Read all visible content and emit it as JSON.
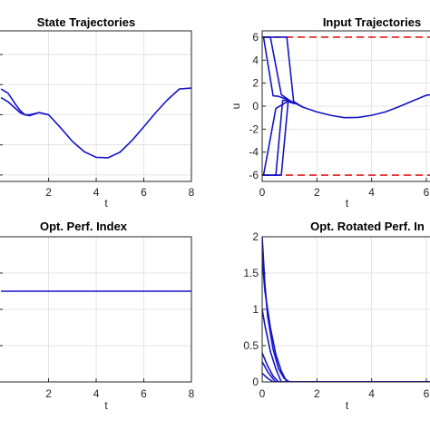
{
  "chart_data": [
    {
      "type": "line",
      "title": "State Trajectories",
      "xlabel": "t",
      "ylabel": "",
      "xlim": [
        0,
        8
      ],
      "xticks": [
        "2",
        "4",
        "6",
        "8"
      ],
      "grid": true,
      "series": [
        {
          "x": [
            0.0,
            0.3,
            0.6,
            0.8,
            1.0,
            1.2,
            1.6,
            2.0,
            2.5,
            3.0,
            3.5,
            4.0,
            4.5,
            5.0,
            5.5,
            6.0,
            6.5,
            7.0,
            7.5,
            8.0
          ],
          "y": [
            0.6,
            0.5,
            0.25,
            0.1,
            0.0,
            -0.02,
            0.05,
            0.0,
            -0.3,
            -0.62,
            -0.86,
            -0.99,
            -1.0,
            -0.87,
            -0.6,
            -0.28,
            0.05,
            0.35,
            0.6,
            0.62
          ]
        },
        {
          "x": [
            0.0,
            0.3,
            0.6,
            0.8,
            1.0,
            1.2,
            1.6,
            2.0
          ],
          "y": [
            0.4,
            0.3,
            0.15,
            0.05,
            0.0,
            0.0,
            0.05,
            0.0
          ]
        }
      ]
    },
    {
      "type": "line",
      "title": "Input Trajectories",
      "xlabel": "t",
      "ylabel": "u",
      "xlim": [
        0,
        6.2
      ],
      "ylim": [
        -6.5,
        6.5
      ],
      "xticks": [
        "0",
        "2",
        "4",
        "6"
      ],
      "yticks": [
        "-6",
        "-4",
        "-2",
        "0",
        "2",
        "4",
        "6"
      ],
      "grid": true,
      "constraints": {
        "upper": 6,
        "lower": -6,
        "color": "#e11c1c"
      },
      "series": [
        {
          "x": [
            0.0,
            0.05,
            0.4,
            0.6,
            1.0,
            1.5,
            2.0,
            2.5,
            3.0,
            3.5,
            4.0,
            4.5,
            5.0,
            5.5,
            6.0,
            6.2
          ],
          "y": [
            6.0,
            6.0,
            0.9,
            0.85,
            0.5,
            -0.1,
            -0.5,
            -0.8,
            -1.0,
            -0.98,
            -0.8,
            -0.5,
            -0.05,
            0.45,
            0.95,
            1.0
          ]
        },
        {
          "x": [
            0.0,
            0.3,
            0.7,
            1.0
          ],
          "y": [
            6.0,
            6.0,
            1.0,
            0.5
          ]
        },
        {
          "x": [
            0.0,
            0.9,
            1.15,
            1.5
          ],
          "y": [
            6.0,
            6.0,
            0.4,
            -0.1
          ]
        },
        {
          "x": [
            0.0,
            0.05,
            0.5,
            1.0
          ],
          "y": [
            -6.0,
            -6.0,
            -0.2,
            0.5
          ]
        },
        {
          "x": [
            0.0,
            0.5,
            0.75,
            1.0
          ],
          "y": [
            -6.0,
            -6.0,
            0.5,
            0.5
          ]
        },
        {
          "x": [
            0.0,
            0.7,
            0.95,
            1.2
          ],
          "y": [
            -6.0,
            -6.0,
            0.4,
            0.2
          ]
        }
      ]
    },
    {
      "type": "line",
      "title": "Opt. Perf. Index",
      "xlabel": "t",
      "ylabel": "",
      "xlim": [
        0,
        8
      ],
      "xticks": [
        "2",
        "4",
        "6",
        "8"
      ],
      "grid": true,
      "series": [
        {
          "x": [
            0.0,
            0.5,
            8.0
          ],
          "y": [
            1.0,
            1.0,
            1.0
          ]
        }
      ]
    },
    {
      "type": "line",
      "title": "Opt. Rotated Perf. In",
      "xlabel": "t",
      "ylabel": "",
      "xlim": [
        0,
        6.2
      ],
      "ylim": [
        0,
        2
      ],
      "xticks": [
        "0",
        "2",
        "4",
        "6"
      ],
      "yticks": [
        "0",
        "0.5",
        "1",
        "1.5",
        "2"
      ],
      "grid": true,
      "series": [
        {
          "x": [
            0.0,
            0.1,
            0.2,
            0.4,
            0.6,
            0.8,
            1.0,
            6.2
          ],
          "y": [
            2.0,
            1.35,
            0.9,
            0.45,
            0.18,
            0.05,
            0.0,
            0.0
          ]
        },
        {
          "x": [
            0.0,
            0.1,
            0.3,
            0.5,
            0.7,
            0.9,
            6.2
          ],
          "y": [
            1.7,
            1.25,
            0.75,
            0.38,
            0.15,
            0.0,
            0.0
          ]
        },
        {
          "x": [
            0.0,
            0.1,
            0.3,
            0.5,
            0.7,
            6.2
          ],
          "y": [
            1.0,
            0.78,
            0.42,
            0.18,
            0.0,
            0.0
          ]
        },
        {
          "x": [
            0.0,
            0.2,
            0.4,
            0.6,
            6.2
          ],
          "y": [
            0.4,
            0.22,
            0.08,
            0.0,
            0.0
          ]
        },
        {
          "x": [
            0.0,
            0.2,
            0.4,
            0.5,
            6.2
          ],
          "y": [
            0.28,
            0.14,
            0.04,
            0.0,
            0.0
          ]
        },
        {
          "x": [
            0.0,
            0.2,
            0.4,
            6.2
          ],
          "y": [
            0.12,
            0.05,
            0.0,
            0.0
          ]
        }
      ]
    }
  ]
}
